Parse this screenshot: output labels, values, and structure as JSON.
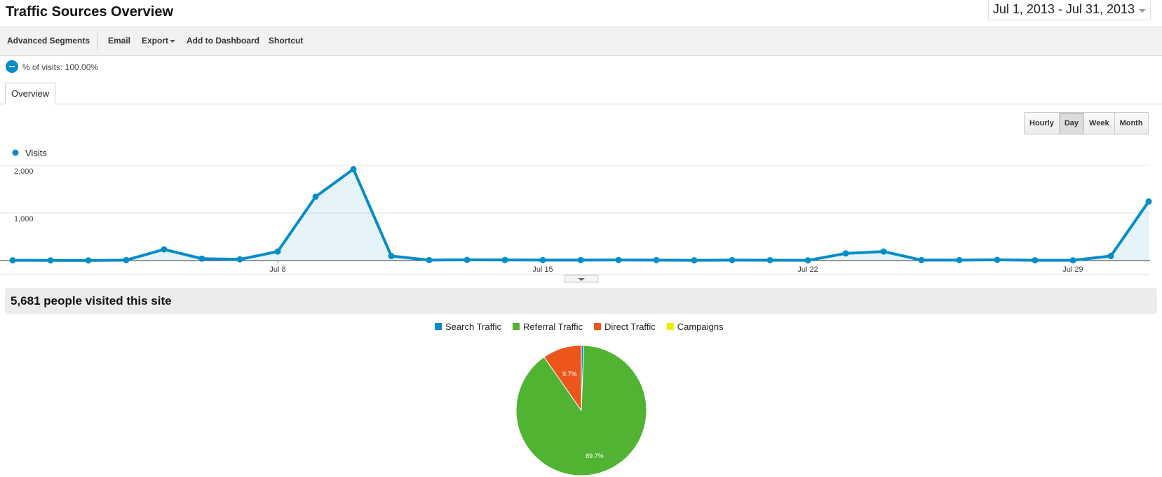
{
  "header": {
    "title": "Traffic Sources Overview",
    "date_range": "Jul 1, 2013 - Jul 31, 2013"
  },
  "toolbar": [
    "Advanced Segments",
    "Email",
    "Export",
    "Add to Dashboard",
    "Shortcut"
  ],
  "segment": "% of visits: 100.00%",
  "tabs": [
    "Overview"
  ],
  "interval_buttons": [
    "Hourly",
    "Day",
    "Week",
    "Month"
  ],
  "summary": "5,681 people visited this site",
  "chart_data": [
    {
      "type": "line",
      "categories": [
        null,
        null,
        null,
        null,
        null,
        null,
        null,
        "Jul 8",
        null,
        null,
        null,
        null,
        null,
        null,
        "Jul 15",
        null,
        null,
        null,
        null,
        null,
        null,
        "Jul 22",
        null,
        null,
        null,
        null,
        null,
        null,
        "Jul 29",
        null,
        null
      ],
      "series": [
        {
          "name": "Visits",
          "color": "#058dc7",
          "values": [
            5,
            3,
            2,
            10,
            235,
            40,
            25,
            190,
            1340,
            1920,
            95,
            10,
            15,
            12,
            10,
            10,
            12,
            10,
            5,
            10,
            8,
            5,
            150,
            190,
            10,
            10,
            15,
            5,
            5,
            95,
            1240
          ]
        }
      ],
      "ylim": [
        0,
        2000
      ],
      "yticks": [
        {
          "value": 1000,
          "label": "1,000"
        },
        {
          "value": 2000,
          "label": "2,000"
        }
      ],
      "grid": true
    },
    {
      "type": "pie",
      "categories": [
        "Search Traffic",
        "Referral Traffic",
        "Direct Traffic",
        "Campaigns"
      ],
      "colors": [
        "#058dc7",
        "#50b432",
        "#ed561b",
        "#edef00"
      ],
      "values": [
        0.6,
        89.7,
        9.7,
        0
      ],
      "value_labels": [
        null,
        "89.7%",
        "9.7%",
        null
      ]
    }
  ]
}
